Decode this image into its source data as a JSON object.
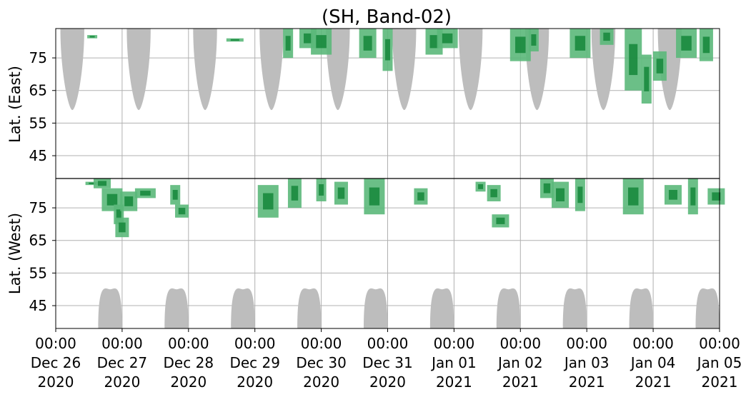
{
  "chart_data": {
    "type": "heatmap",
    "title": "(SH, Band-02)",
    "ylabel_top": "Lat. (East)",
    "ylabel_bottom": "Lat. (West)",
    "east_ticks": [
      "45",
      "55",
      "65",
      "75"
    ],
    "west_ticks": [
      "75",
      "65",
      "55",
      "45"
    ],
    "east_tick_values": [
      45,
      55,
      65,
      75
    ],
    "west_tick_values": [
      75,
      65,
      55,
      45
    ],
    "lat_range_east": [
      38,
      84
    ],
    "lat_range_west": [
      84,
      38
    ],
    "x_range_days": [
      0,
      10
    ],
    "x_ticks": [
      {
        "time": "00:00",
        "date": "Dec 26",
        "year": "2020",
        "day": 0
      },
      {
        "time": "00:00",
        "date": "Dec 27",
        "year": "2020",
        "day": 1
      },
      {
        "time": "00:00",
        "date": "Dec 28",
        "year": "2020",
        "day": 2
      },
      {
        "time": "00:00",
        "date": "Dec 29",
        "year": "2020",
        "day": 3
      },
      {
        "time": "00:00",
        "date": "Dec 30",
        "year": "2020",
        "day": 4
      },
      {
        "time": "00:00",
        "date": "Dec 31",
        "year": "2020",
        "day": 5
      },
      {
        "time": "00:00",
        "date": "Jan 01",
        "year": "2021",
        "day": 6
      },
      {
        "time": "00:00",
        "date": "Jan 02",
        "year": "2021",
        "day": 7
      },
      {
        "time": "00:00",
        "date": "Jan 03",
        "year": "2021",
        "day": 8
      },
      {
        "time": "00:00",
        "date": "Jan 04",
        "year": "2021",
        "day": 9
      },
      {
        "time": "00:00",
        "date": "Jan 05",
        "year": "2021",
        "day": 10
      }
    ],
    "grid": true,
    "colors": {
      "mask": "#bdbdbd",
      "detection_light": "#5bb87a",
      "detection_dark": "#1a8a3e",
      "grid": "#b0b0b0",
      "divider": "#000000"
    },
    "daylight_mask_east_day_centers": [
      0.25,
      1.25,
      2.25,
      3.25,
      4.25,
      5.25,
      6.25,
      7.25,
      8.25,
      9.25
    ],
    "daylight_mask_west_day_centers": [
      0.82,
      1.82,
      2.82,
      3.82,
      4.82,
      5.82,
      6.82,
      7.82,
      8.82,
      9.82
    ],
    "daylight_mask_half_width_days": 0.18,
    "daylight_mask_east_min_lat": 59,
    "daylight_mask_west_min_lat": 50,
    "detections": [
      {
        "day": 0.55,
        "hemi": "east",
        "lat_from": 82,
        "lat_to": 81
      },
      {
        "day": 0.55,
        "hemi": "west",
        "lat_from": 83,
        "lat_to": 82
      },
      {
        "day": 0.7,
        "hemi": "west",
        "lat_from": 84,
        "lat_to": 81
      },
      {
        "day": 0.85,
        "hemi": "west",
        "lat_from": 81,
        "lat_to": 74
      },
      {
        "day": 0.95,
        "hemi": "west",
        "lat_from": 76,
        "lat_to": 70
      },
      {
        "day": 1.0,
        "hemi": "west",
        "lat_from": 72,
        "lat_to": 66
      },
      {
        "day": 1.1,
        "hemi": "west",
        "lat_from": 80,
        "lat_to": 74
      },
      {
        "day": 1.35,
        "hemi": "west",
        "lat_from": 81,
        "lat_to": 78
      },
      {
        "day": 1.8,
        "hemi": "west",
        "lat_from": 82,
        "lat_to": 76
      },
      {
        "day": 1.9,
        "hemi": "west",
        "lat_from": 76,
        "lat_to": 72
      },
      {
        "day": 2.7,
        "hemi": "east",
        "lat_from": 80,
        "lat_to": 81
      },
      {
        "day": 3.2,
        "hemi": "west",
        "lat_from": 82,
        "lat_to": 72
      },
      {
        "day": 3.5,
        "hemi": "east",
        "lat_from": 75,
        "lat_to": 84
      },
      {
        "day": 3.6,
        "hemi": "west",
        "lat_from": 84,
        "lat_to": 75
      },
      {
        "day": 3.8,
        "hemi": "east",
        "lat_from": 78,
        "lat_to": 84
      },
      {
        "day": 4.0,
        "hemi": "east",
        "lat_from": 76,
        "lat_to": 84
      },
      {
        "day": 4.0,
        "hemi": "west",
        "lat_from": 84,
        "lat_to": 77
      },
      {
        "day": 4.3,
        "hemi": "west",
        "lat_from": 83,
        "lat_to": 76
      },
      {
        "day": 4.7,
        "hemi": "east",
        "lat_from": 75,
        "lat_to": 84
      },
      {
        "day": 4.8,
        "hemi": "west",
        "lat_from": 84,
        "lat_to": 73
      },
      {
        "day": 5.0,
        "hemi": "east",
        "lat_from": 71,
        "lat_to": 84
      },
      {
        "day": 5.5,
        "hemi": "west",
        "lat_from": 81,
        "lat_to": 76
      },
      {
        "day": 5.7,
        "hemi": "east",
        "lat_from": 76,
        "lat_to": 84
      },
      {
        "day": 5.9,
        "hemi": "east",
        "lat_from": 78,
        "lat_to": 84
      },
      {
        "day": 6.4,
        "hemi": "west",
        "lat_from": 83,
        "lat_to": 80
      },
      {
        "day": 6.6,
        "hemi": "west",
        "lat_from": 82,
        "lat_to": 77
      },
      {
        "day": 6.7,
        "hemi": "west",
        "lat_from": 73,
        "lat_to": 69
      },
      {
        "day": 7.0,
        "hemi": "east",
        "lat_from": 74,
        "lat_to": 84
      },
      {
        "day": 7.2,
        "hemi": "east",
        "lat_from": 77,
        "lat_to": 84
      },
      {
        "day": 7.4,
        "hemi": "west",
        "lat_from": 84,
        "lat_to": 78
      },
      {
        "day": 7.6,
        "hemi": "west",
        "lat_from": 83,
        "lat_to": 75
      },
      {
        "day": 7.9,
        "hemi": "east",
        "lat_from": 75,
        "lat_to": 84
      },
      {
        "day": 7.9,
        "hemi": "west",
        "lat_from": 84,
        "lat_to": 74
      },
      {
        "day": 8.3,
        "hemi": "east",
        "lat_from": 79,
        "lat_to": 84
      },
      {
        "day": 8.7,
        "hemi": "east",
        "lat_from": 65,
        "lat_to": 84
      },
      {
        "day": 8.7,
        "hemi": "west",
        "lat_from": 84,
        "lat_to": 73
      },
      {
        "day": 8.9,
        "hemi": "east",
        "lat_from": 61,
        "lat_to": 76
      },
      {
        "day": 9.1,
        "hemi": "east",
        "lat_from": 68,
        "lat_to": 77
      },
      {
        "day": 9.3,
        "hemi": "west",
        "lat_from": 82,
        "lat_to": 76
      },
      {
        "day": 9.5,
        "hemi": "east",
        "lat_from": 75,
        "lat_to": 84
      },
      {
        "day": 9.6,
        "hemi": "west",
        "lat_from": 84,
        "lat_to": 73
      },
      {
        "day": 9.8,
        "hemi": "east",
        "lat_from": 74,
        "lat_to": 84
      },
      {
        "day": 9.95,
        "hemi": "west",
        "lat_from": 81,
        "lat_to": 76
      }
    ]
  }
}
